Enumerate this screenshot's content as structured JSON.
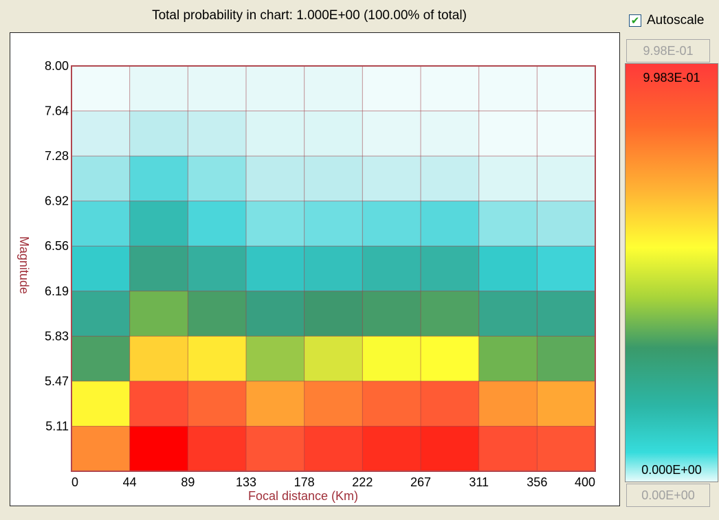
{
  "header": {
    "total_probability_text": "Total probability in chart: 1.000E+00 (100.00% of total)"
  },
  "autoscale": {
    "label": "Autoscale",
    "checked": true
  },
  "color_scale": {
    "max_input_value": "9.98E-01",
    "min_input_value": "0.00E+00",
    "max_label": "9.983E-01",
    "min_label": "0.000E+00"
  },
  "chart_data": {
    "type": "heatmap",
    "xlabel": "Focal distance (Km)",
    "ylabel": "Magnitude",
    "x_tick_labels": [
      "0",
      "44",
      "89",
      "133",
      "178",
      "222",
      "267",
      "311",
      "356",
      "400"
    ],
    "y_tick_labels": [
      "5.11",
      "5.47",
      "5.83",
      "6.19",
      "6.56",
      "6.92",
      "7.28",
      "7.64",
      "8.00"
    ],
    "xlim": [
      0,
      400
    ],
    "ylim": [
      4.75,
      8.0
    ],
    "x_bins": 9,
    "y_bins": 9,
    "grid": true,
    "value_range": [
      0,
      0.9983
    ],
    "rows_top_to_bottom": [
      [
        0.0,
        0.01,
        0.01,
        0.01,
        0.01,
        0.0,
        0.0,
        0.0,
        0.0
      ],
      [
        0.03,
        0.05,
        0.04,
        0.02,
        0.02,
        0.01,
        0.01,
        0.0,
        0.0
      ],
      [
        0.07,
        0.12,
        0.08,
        0.05,
        0.05,
        0.04,
        0.04,
        0.02,
        0.02
      ],
      [
        0.12,
        0.19,
        0.13,
        0.09,
        0.1,
        0.11,
        0.12,
        0.08,
        0.07
      ],
      [
        0.16,
        0.26,
        0.22,
        0.17,
        0.18,
        0.2,
        0.21,
        0.16,
        0.14
      ],
      [
        0.24,
        0.45,
        0.34,
        0.27,
        0.31,
        0.33,
        0.36,
        0.25,
        0.25
      ],
      [
        0.35,
        0.68,
        0.65,
        0.49,
        0.55,
        0.61,
        0.62,
        0.45,
        0.4
      ],
      [
        0.63,
        0.9,
        0.86,
        0.76,
        0.82,
        0.86,
        0.88,
        0.78,
        0.75
      ],
      [
        0.8,
        0.998,
        0.93,
        0.89,
        0.92,
        0.94,
        0.95,
        0.9,
        0.89
      ]
    ]
  }
}
